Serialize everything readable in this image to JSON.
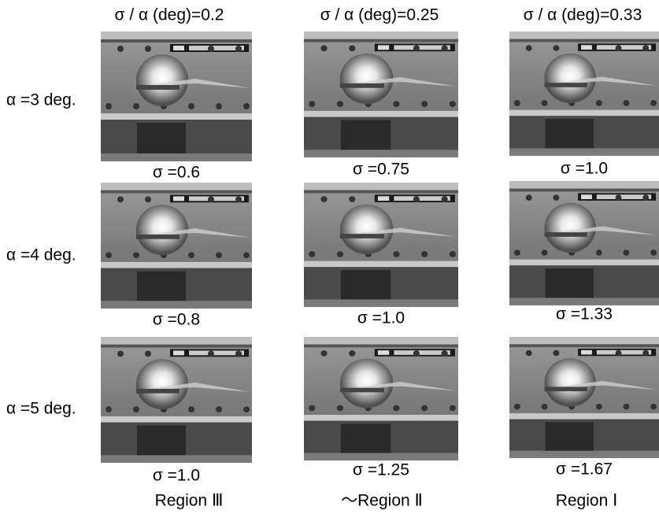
{
  "column_headers": [
    "σ / α (deg)=0.2",
    "σ / α (deg)=0.25",
    "σ / α (deg)=0.33"
  ],
  "rows": [
    {
      "label": "α =3 deg.",
      "captions": [
        "σ =0.6",
        "σ =0.75",
        "σ =1.0"
      ]
    },
    {
      "label": "α =4 deg.",
      "captions": [
        "σ =0.8",
        "σ =1.0",
        "σ =1.33"
      ]
    },
    {
      "label": "α =5 deg.",
      "captions": [
        "σ =1.0",
        "σ =1.25",
        "σ =1.67"
      ]
    }
  ],
  "regions": [
    "Region Ⅲ",
    "～Region Ⅱ",
    "Region Ⅰ"
  ]
}
